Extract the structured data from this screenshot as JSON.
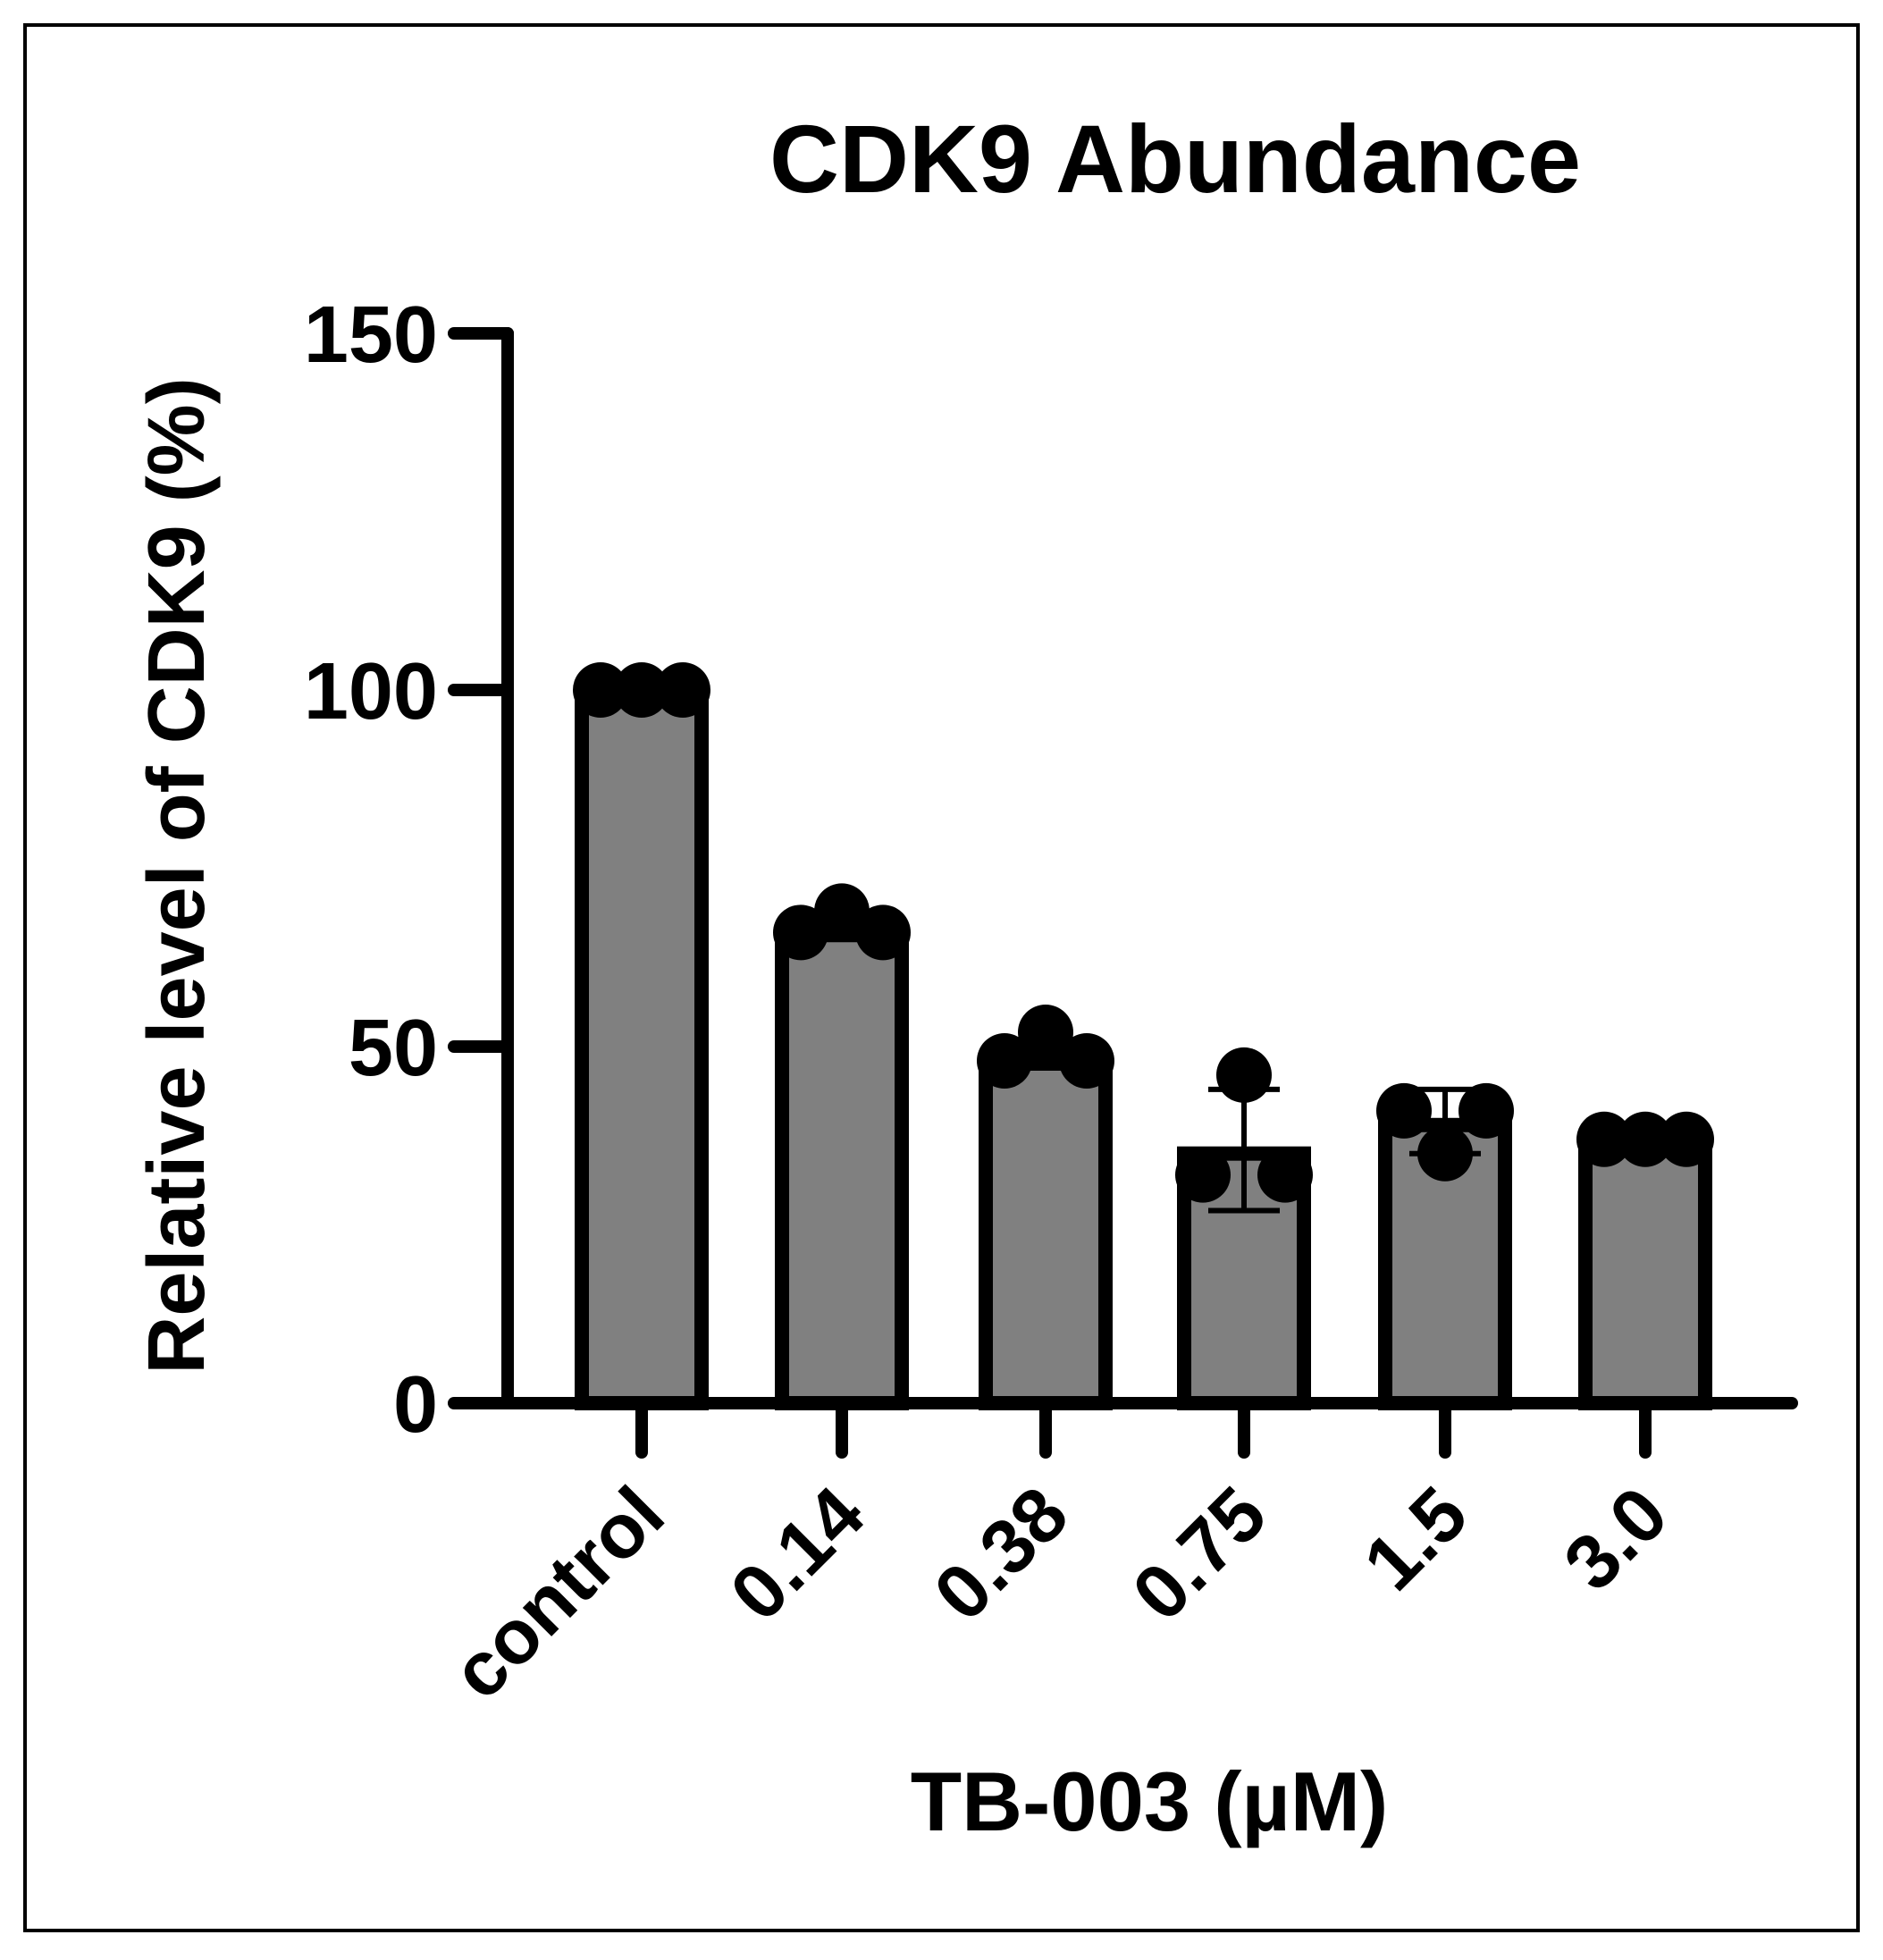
{
  "chart_data": {
    "type": "bar",
    "title": "CDK9 Abundance",
    "xlabel": "TB-003 (µM)",
    "ylabel": "Relative level of CDK9 (%)",
    "ylim": [
      0,
      150
    ],
    "yticks": [
      0,
      50,
      100,
      150
    ],
    "categories": [
      "control",
      "0.14",
      "0.38",
      "0.75",
      "1.5",
      "3.0"
    ],
    "values": [
      100,
      66,
      48,
      35,
      39,
      37
    ],
    "error": [
      {
        "low": 100,
        "high": 100
      },
      {
        "low": 65,
        "high": 68
      },
      {
        "low": 47,
        "high": 51
      },
      {
        "low": 27,
        "high": 44
      },
      {
        "low": 35,
        "high": 44
      },
      {
        "low": 37,
        "high": 37
      }
    ],
    "points": [
      [
        100,
        100,
        100
      ],
      [
        66,
        69,
        66
      ],
      [
        48,
        52,
        48
      ],
      [
        32,
        46,
        32
      ],
      [
        41,
        35,
        41
      ],
      [
        37,
        37,
        37
      ]
    ],
    "grid": false,
    "bar_color": "#808080",
    "edge_color": "#000000"
  }
}
